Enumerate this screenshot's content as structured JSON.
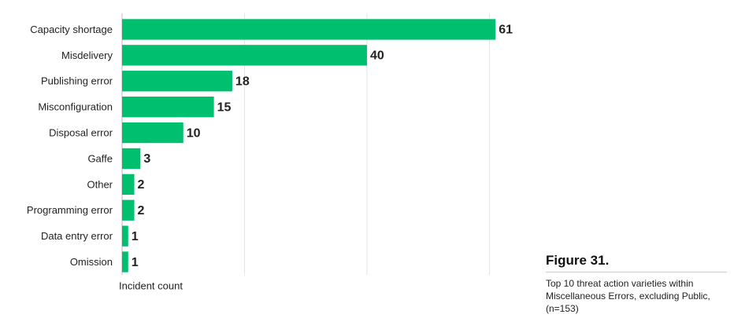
{
  "chart_data": {
    "type": "bar",
    "orientation": "horizontal",
    "title": "Figure 31.",
    "subtitle": "Top 10 threat action varieties within Miscellaneous Errors, excluding Public, (n=153)",
    "x_label": "Incident count",
    "categories": [
      "Capacity shortage",
      "Misdelivery",
      "Publishing error",
      "Misconfiguration",
      "Disposal error",
      "Gaffe",
      "Other",
      "Programming error",
      "Data entry error",
      "Omission"
    ],
    "values": [
      61,
      40,
      18,
      15,
      10,
      3,
      2,
      2,
      1,
      1
    ],
    "color": "#00bf6f",
    "xlim": [
      0,
      62
    ],
    "xticks": [
      0,
      20,
      40,
      60
    ],
    "grid": true
  }
}
